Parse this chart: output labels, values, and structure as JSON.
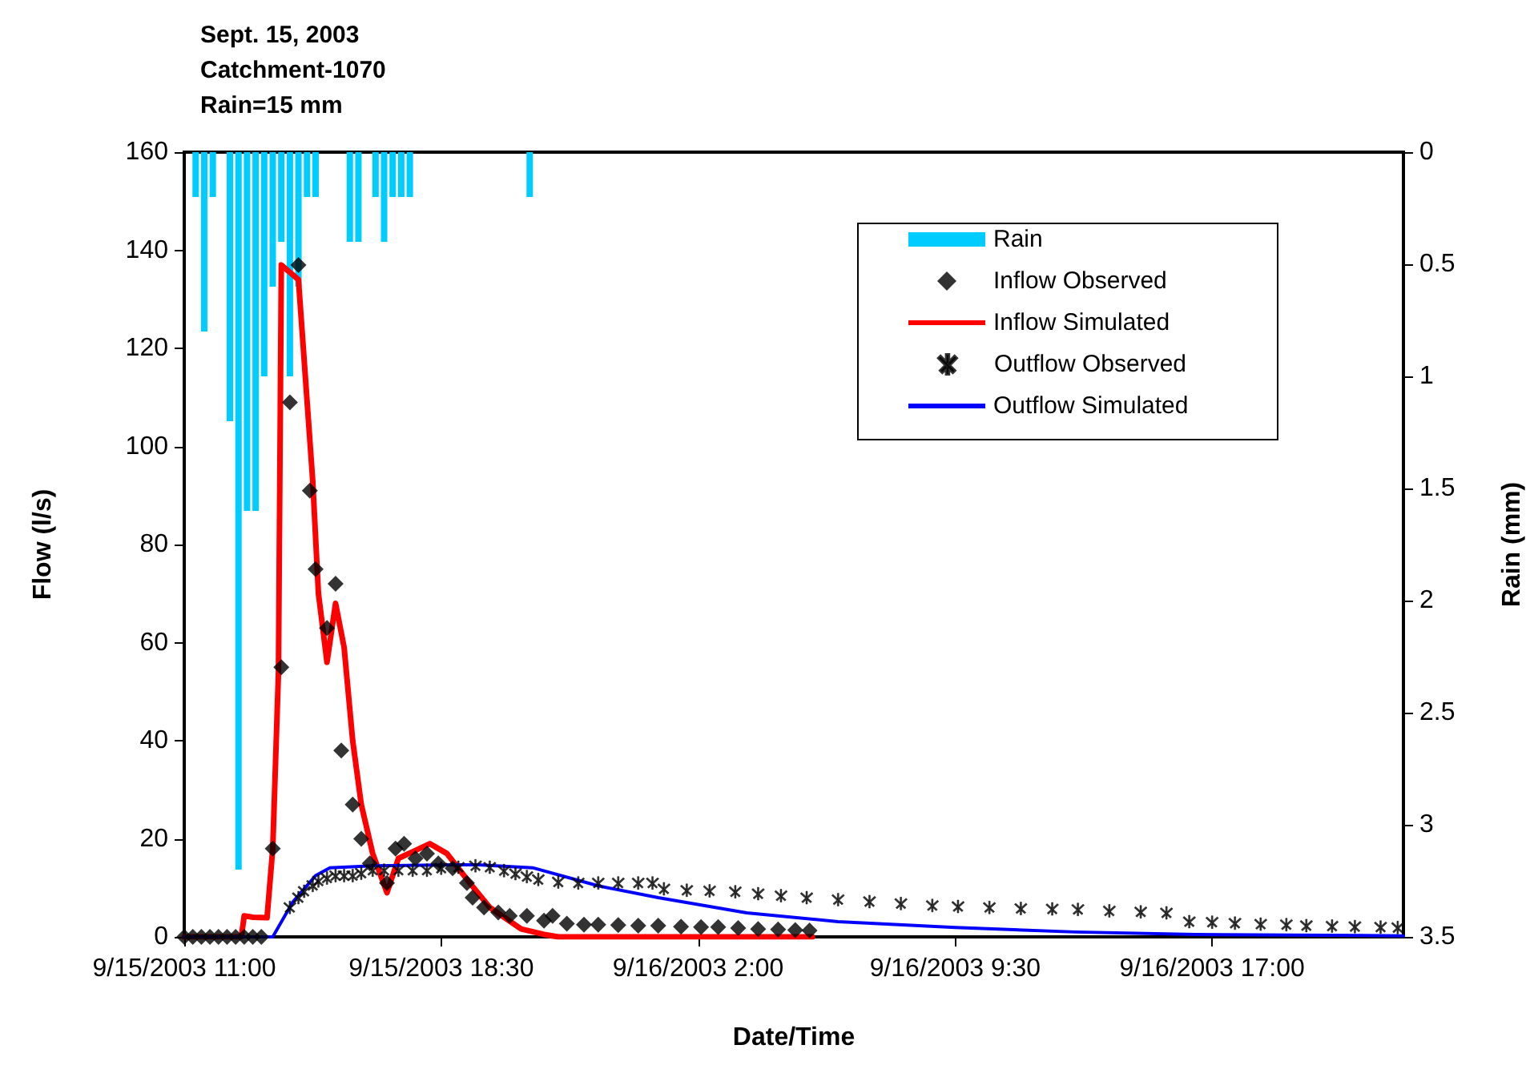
{
  "chart_data": {
    "type": "line",
    "title": "Sept. 15, 2003\nCatchment-1070\nRain=15 mm",
    "xlabel": "Date/Time",
    "ylabel": "Flow (l/s)",
    "y2label": "Rain (mm)",
    "xlim": [
      "2003-09-15T11:00",
      "2003-09-16T22:35"
    ],
    "xticks": [
      {
        "value": "2003-09-15T11:00",
        "label": "9/15/2003 11:00"
      },
      {
        "value": "2003-09-15T18:30",
        "label": "9/15/2003 18:30"
      },
      {
        "value": "2003-09-16T02:00",
        "label": "9/16/2003 2:00"
      },
      {
        "value": "2003-09-16T09:30",
        "label": "9/16/2003 9:30"
      },
      {
        "value": "2003-09-16T17:00",
        "label": "9/16/2003 17:00"
      }
    ],
    "ylim": [
      0,
      160
    ],
    "yticks": [
      0,
      20,
      40,
      60,
      80,
      100,
      120,
      140,
      160
    ],
    "y2lim": [
      3.5,
      0
    ],
    "y2ticks": [
      0,
      0.5,
      1,
      1.5,
      2,
      2.5,
      3,
      3.5
    ],
    "grid": false,
    "legend": "top right",
    "series": [
      {
        "name": "Rain",
        "type": "bar",
        "axis": "y2",
        "color": "#00ccff",
        "x": [
          "2003-09-15T11:20",
          "2003-09-15T11:35",
          "2003-09-15T11:50",
          "2003-09-15T12:20",
          "2003-09-15T12:35",
          "2003-09-15T12:50",
          "2003-09-15T13:05",
          "2003-09-15T13:20",
          "2003-09-15T13:35",
          "2003-09-15T13:50",
          "2003-09-15T14:05",
          "2003-09-15T14:20",
          "2003-09-15T14:35",
          "2003-09-15T14:50",
          "2003-09-15T15:50",
          "2003-09-15T16:05",
          "2003-09-15T16:35",
          "2003-09-15T16:50",
          "2003-09-15T17:05",
          "2003-09-15T17:20",
          "2003-09-15T17:35",
          "2003-09-15T21:05"
        ],
        "values": [
          0.2,
          0.8,
          0.2,
          1.2,
          3.2,
          1.6,
          1.6,
          1.0,
          0.6,
          0.4,
          1.0,
          0.6,
          0.2,
          0.2,
          0.4,
          0.4,
          0.2,
          0.4,
          0.2,
          0.2,
          0.2,
          0.2
        ]
      },
      {
        "name": "Inflow Observed",
        "type": "scatter",
        "marker": "diamond",
        "color": "#000000",
        "x": [
          "2003-09-15T11:00",
          "2003-09-15T11:15",
          "2003-09-15T11:30",
          "2003-09-15T11:45",
          "2003-09-15T12:00",
          "2003-09-15T12:15",
          "2003-09-15T12:30",
          "2003-09-15T12:45",
          "2003-09-15T13:00",
          "2003-09-15T13:15",
          "2003-09-15T13:35",
          "2003-09-15T13:50",
          "2003-09-15T14:05",
          "2003-09-15T14:20",
          "2003-09-15T14:40",
          "2003-09-15T14:50",
          "2003-09-15T15:10",
          "2003-09-15T15:25",
          "2003-09-15T15:35",
          "2003-09-15T15:55",
          "2003-09-15T16:10",
          "2003-09-15T16:25",
          "2003-09-15T16:55",
          "2003-09-15T17:10",
          "2003-09-15T17:25",
          "2003-09-15T17:45",
          "2003-09-15T18:05",
          "2003-09-15T18:25",
          "2003-09-15T18:50",
          "2003-09-15T19:15",
          "2003-09-15T19:25",
          "2003-09-15T19:45",
          "2003-09-15T20:10",
          "2003-09-15T20:30",
          "2003-09-15T21:00",
          "2003-09-15T21:30",
          "2003-09-15T21:45",
          "2003-09-15T22:10",
          "2003-09-15T22:40",
          "2003-09-15T23:05",
          "2003-09-15T23:40",
          "2003-09-16T00:15",
          "2003-09-16T00:50",
          "2003-09-16T01:30",
          "2003-09-16T02:05",
          "2003-09-16T02:35",
          "2003-09-16T03:10",
          "2003-09-16T03:45",
          "2003-09-16T04:20",
          "2003-09-16T04:50",
          "2003-09-16T05:15"
        ],
        "values": [
          0,
          0,
          0,
          0,
          0,
          0,
          0,
          0,
          0,
          0,
          18,
          55,
          109,
          137,
          91,
          75,
          63,
          72,
          38,
          27,
          20,
          15,
          11,
          18,
          19,
          16,
          17,
          15,
          14,
          11,
          8,
          6,
          5,
          4.3,
          4.3,
          3.3,
          4.3,
          2.7,
          2.5,
          2.5,
          2.4,
          2.3,
          2.3,
          2.1,
          2,
          2,
          1.8,
          1.6,
          1.5,
          1.4,
          1.3
        ]
      },
      {
        "name": "Inflow Simulated",
        "color": "#ff0000",
        "x": [
          "2003-09-15T11:00",
          "2003-09-15T12:40",
          "2003-09-15T12:45",
          "2003-09-15T13:00",
          "2003-09-15T13:25",
          "2003-09-15T13:35",
          "2003-09-15T13:45",
          "2003-09-15T13:50",
          "2003-09-15T14:20",
          "2003-09-15T14:45",
          "2003-09-15T14:55",
          "2003-09-15T15:10",
          "2003-09-15T15:25",
          "2003-09-15T15:40",
          "2003-09-15T15:55",
          "2003-09-15T16:10",
          "2003-09-15T16:30",
          "2003-09-15T16:55",
          "2003-09-15T17:15",
          "2003-09-15T18:10",
          "2003-09-15T18:40",
          "2003-09-15T19:20",
          "2003-09-15T19:55",
          "2003-09-15T20:50",
          "2003-09-15T21:30",
          "2003-09-15T21:55",
          "2003-09-16T05:20"
        ],
        "values": [
          0,
          0,
          4.3,
          4,
          3.9,
          18,
          54,
          137,
          134,
          93,
          70,
          56,
          68,
          59,
          40,
          27,
          17,
          9,
          16,
          19,
          17,
          11,
          6,
          1.6,
          0.5,
          0,
          0
        ]
      },
      {
        "name": "Outflow Observed",
        "type": "scatter",
        "marker": "cross",
        "color": "#000000",
        "x": [
          "2003-09-15T14:05",
          "2003-09-15T14:20",
          "2003-09-15T14:30",
          "2003-09-15T14:45",
          "2003-09-15T14:55",
          "2003-09-15T15:10",
          "2003-09-15T15:25",
          "2003-09-15T15:40",
          "2003-09-15T15:55",
          "2003-09-15T16:10",
          "2003-09-15T16:30",
          "2003-09-15T16:50",
          "2003-09-15T17:15",
          "2003-09-15T17:40",
          "2003-09-15T18:05",
          "2003-09-15T18:30",
          "2003-09-15T19:00",
          "2003-09-15T19:30",
          "2003-09-15T19:55",
          "2003-09-15T20:20",
          "2003-09-15T20:40",
          "2003-09-15T21:00",
          "2003-09-15T21:20",
          "2003-09-15T21:55",
          "2003-09-15T22:30",
          "2003-09-15T23:05",
          "2003-09-15T23:40",
          "2003-09-16T00:15",
          "2003-09-16T00:40",
          "2003-09-16T01:00",
          "2003-09-16T01:40",
          "2003-09-16T02:20",
          "2003-09-16T03:05",
          "2003-09-16T03:45",
          "2003-09-16T04:25",
          "2003-09-16T05:10",
          "2003-09-16T06:05",
          "2003-09-16T07:00",
          "2003-09-16T07:55",
          "2003-09-16T08:50",
          "2003-09-16T09:35",
          "2003-09-16T10:30",
          "2003-09-16T11:25",
          "2003-09-16T12:20",
          "2003-09-16T13:05",
          "2003-09-16T14:00",
          "2003-09-16T14:55",
          "2003-09-16T15:40",
          "2003-09-16T16:20",
          "2003-09-16T17:00",
          "2003-09-16T17:40",
          "2003-09-16T18:25",
          "2003-09-16T19:10",
          "2003-09-16T19:45",
          "2003-09-16T20:30",
          "2003-09-16T21:10",
          "2003-09-16T21:55",
          "2003-09-16T22:25"
        ],
        "values": [
          6,
          8,
          9.3,
          10.5,
          11.4,
          12,
          12.5,
          12.5,
          12.5,
          13,
          13.6,
          13.6,
          13.6,
          13.6,
          13.6,
          14,
          14.2,
          14.5,
          14.2,
          13.5,
          12.9,
          12.3,
          11.7,
          11.2,
          11,
          11,
          11,
          11,
          11,
          9.8,
          9.5,
          9.4,
          9.2,
          8.8,
          8.4,
          8,
          7.6,
          7.2,
          6.8,
          6.4,
          6.2,
          6,
          5.8,
          5.7,
          5.6,
          5.3,
          5.1,
          4.9,
          3.1,
          3,
          2.8,
          2.6,
          2.5,
          2.3,
          2.2,
          2.1,
          2,
          1.9
        ]
      },
      {
        "name": "Outflow Simulated",
        "color": "#0000ff",
        "x": [
          "2003-09-15T11:00",
          "2003-09-15T13:35",
          "2003-09-15T14:10",
          "2003-09-15T14:50",
          "2003-09-15T15:15",
          "2003-09-15T16:30",
          "2003-09-15T18:50",
          "2003-09-15T19:35",
          "2003-09-15T21:10",
          "2003-09-15T23:05",
          "2003-09-16T00:50",
          "2003-09-16T03:25",
          "2003-09-16T06:05",
          "2003-09-16T09:30",
          "2003-09-16T13:00",
          "2003-09-16T16:30",
          "2003-09-16T21:25",
          "2003-09-16T22:35"
        ],
        "values": [
          0,
          0,
          7.1,
          12.5,
          14.1,
          14.5,
          14.7,
          14.7,
          14.1,
          10.4,
          8,
          4.9,
          3.1,
          1.9,
          1,
          0.5,
          0.3,
          0.2
        ]
      }
    ]
  }
}
